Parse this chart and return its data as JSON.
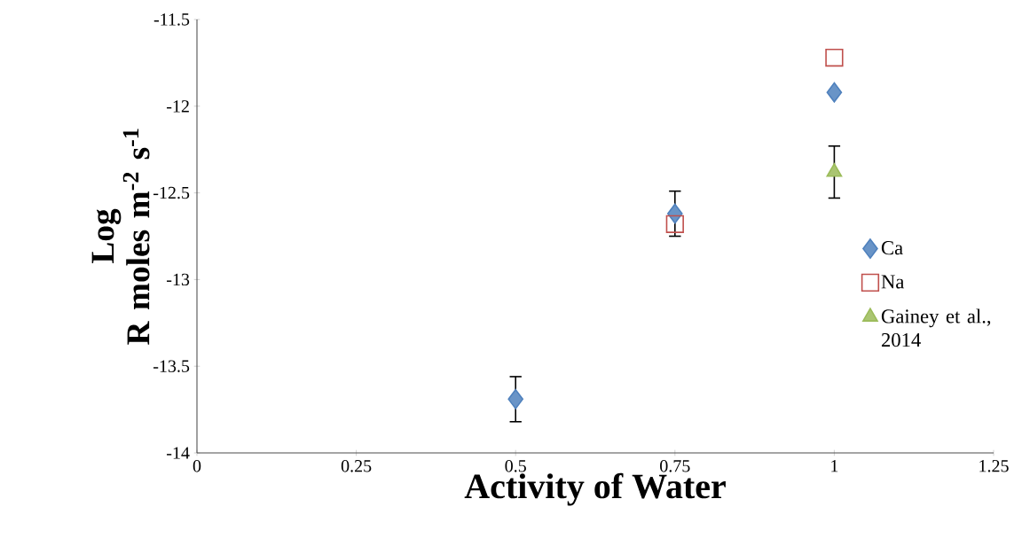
{
  "chart_data": {
    "type": "scatter",
    "xlabel": "Activity of Water",
    "ylabel": "Log R moles m$^{-2}$ s$^{-1}$",
    "xlim": [
      0,
      1.25
    ],
    "xticks": [
      0,
      0.25,
      0.5,
      0.75,
      1,
      1.25
    ],
    "ylim": [
      -14,
      -11.5
    ],
    "yticks": [
      -14,
      -13.5,
      -13,
      -12.5,
      -12,
      -11.5
    ],
    "legend": "right",
    "grid": false,
    "series": [
      {
        "name": "Ca",
        "color": "#4f81bd",
        "marker": "diamond",
        "x": [
          0.5,
          0.75,
          1
        ],
        "values": [
          -13.69,
          -12.62,
          -11.92
        ],
        "errors": [
          0.13,
          0.13,
          null
        ]
      },
      {
        "name": "Na",
        "color": "#c0504d",
        "marker": "square",
        "x": [
          0.75,
          1
        ],
        "values": [
          -12.68,
          -11.72
        ]
      },
      {
        "name": "Gainey et al., 2014",
        "color": "#9bbb59",
        "marker": "triangle",
        "x": [
          1
        ],
        "values": [
          -12.38
        ],
        "errors": [
          0.15
        ]
      }
    ]
  }
}
